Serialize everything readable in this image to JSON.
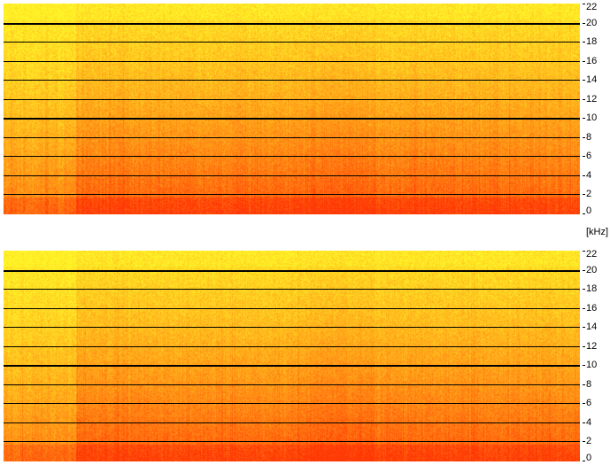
{
  "spectrogram": {
    "unit_label": "[kHz]",
    "frequency_axis": {
      "min": 0,
      "max": 22,
      "ticks": [
        "22",
        "20",
        "18",
        "16",
        "14",
        "12",
        "10",
        "8",
        "6",
        "4",
        "2",
        "0"
      ]
    },
    "channels": [
      {
        "id": "top"
      },
      {
        "id": "bottom"
      }
    ],
    "colors": {
      "low_energy": "#fff01e",
      "mid_energy": "#ffa70d",
      "high_energy": "#ff4a07",
      "gridline": "#000000"
    }
  }
}
